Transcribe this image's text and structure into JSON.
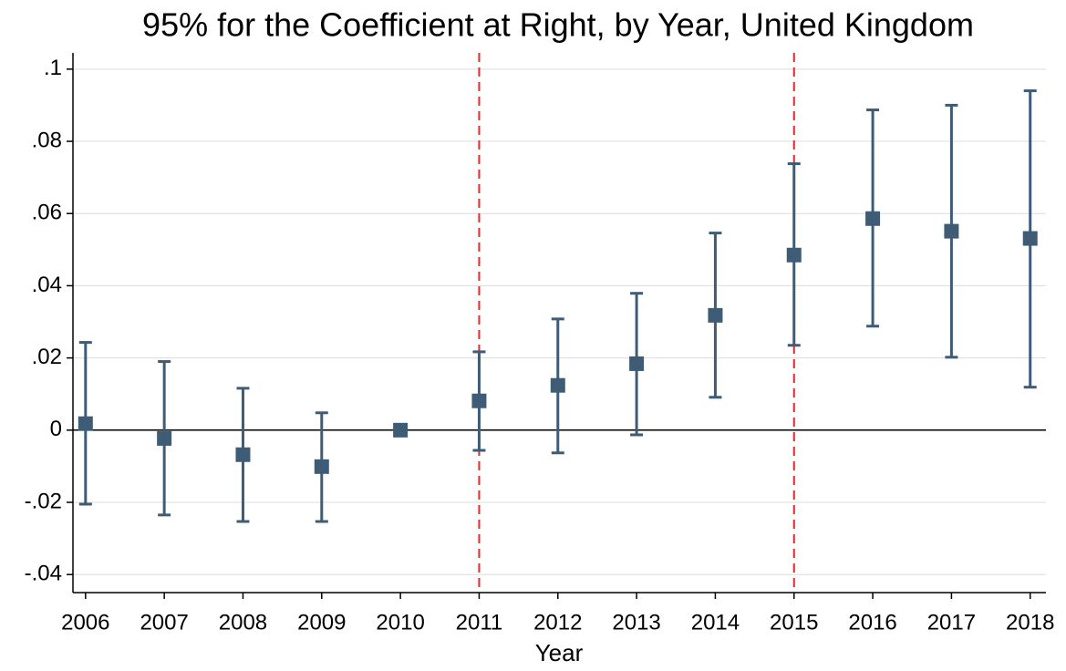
{
  "chart_data": {
    "type": "errorbar",
    "title": "95% for the Coefficient at Right, by Year, United Kingdom",
    "x_label": "Year",
    "x": [
      2006,
      2007,
      2008,
      2009,
      2010,
      2011,
      2012,
      2013,
      2014,
      2015,
      2016,
      2017,
      2018
    ],
    "values": [
      0.0018,
      -0.0023,
      -0.0068,
      -0.0101,
      0,
      0.0081,
      0.0124,
      0.0184,
      0.0318,
      0.0485,
      0.0586,
      0.0551,
      0.0531
    ],
    "lower": [
      -0.0205,
      -0.0235,
      -0.0253,
      -0.0253,
      null,
      -0.0056,
      -0.0063,
      -0.0013,
      0.0091,
      0.0235,
      0.0288,
      0.0202,
      0.0119
    ],
    "upper": [
      0.0243,
      0.019,
      0.0116,
      0.0048,
      null,
      0.0217,
      0.0308,
      0.0379,
      0.0546,
      0.0738,
      0.0887,
      0.09,
      0.094
    ],
    "color": "#3e5c76",
    "xlim": [
      2005.84,
      2018.2
    ],
    "xticks": [
      2006,
      2007,
      2008,
      2009,
      2010,
      2011,
      2012,
      2013,
      2014,
      2015,
      2016,
      2017,
      2018
    ],
    "ylim": [
      -0.045,
      0.1045
    ],
    "yticks": [
      {
        "value": -0.04,
        "label": "-.04"
      },
      {
        "value": -0.02,
        "label": "-.02"
      },
      0,
      {
        "value": 0.02,
        "label": ".02"
      },
      {
        "value": 0.04,
        "label": ".04"
      },
      {
        "value": 0.06,
        "label": ".06"
      },
      {
        "value": 0.08,
        "label": ".08"
      },
      {
        "value": 0.1,
        "label": ".1"
      }
    ],
    "grid": true,
    "hline": 0,
    "vlines": [
      2011,
      2015
    ],
    "vline_color": "#e8262b"
  }
}
